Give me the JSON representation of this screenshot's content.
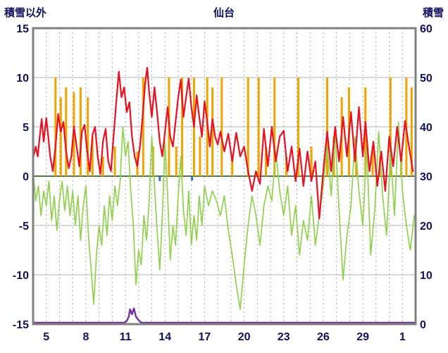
{
  "ui": {
    "left_corner_label": "積雪以外",
    "title": "仙台",
    "right_corner_label": "積雪"
  },
  "chart_data": {
    "type": "line",
    "title": "仙台",
    "left_axis": {
      "label": "積雪以外",
      "min": -15,
      "max": 15,
      "ticks": [
        15,
        10,
        5,
        0,
        -5,
        -10,
        -15
      ]
    },
    "right_axis": {
      "label": "積雪",
      "min": 0,
      "max": 60,
      "ticks": [
        60,
        50,
        40,
        30,
        20,
        10,
        0
      ]
    },
    "x_axis": {
      "min": 4,
      "max": 33,
      "tick_positions": [
        5,
        8,
        11,
        14,
        17,
        20,
        23,
        26,
        29,
        32
      ],
      "tick_labels": [
        "5",
        "8",
        "11",
        "14",
        "17",
        "20",
        "23",
        "26",
        "29",
        "1"
      ]
    },
    "colors": {
      "frame": "#7f7f7f",
      "grid": "#b3b3b3",
      "grid_dash": "#a6a6a6",
      "zero_line": "#4f7a42",
      "text": "#101060",
      "background": "#ffffff"
    },
    "series": [
      {
        "name": "sunshine-bars",
        "type": "bar",
        "axis": "left",
        "color": "#efa400",
        "points": [
          [
            5.7,
            10
          ],
          [
            6.1,
            8
          ],
          [
            6.5,
            9
          ],
          [
            7.1,
            8.5
          ],
          [
            7.6,
            9
          ],
          [
            8.15,
            8
          ],
          [
            8.5,
            4
          ],
          [
            9.3,
            2
          ],
          [
            10.2,
            3
          ],
          [
            11.9,
            2.5
          ],
          [
            12.35,
            10
          ],
          [
            13.1,
            3
          ],
          [
            14.3,
            10
          ],
          [
            14.85,
            3
          ],
          [
            15.3,
            10
          ],
          [
            16.2,
            10
          ],
          [
            16.65,
            4
          ],
          [
            17.2,
            10
          ],
          [
            17.6,
            9
          ],
          [
            18.3,
            10
          ],
          [
            19.1,
            2
          ],
          [
            20.3,
            10
          ],
          [
            21.1,
            10
          ],
          [
            21.65,
            3
          ],
          [
            22.3,
            10
          ],
          [
            23.2,
            2
          ],
          [
            24.1,
            10
          ],
          [
            25.1,
            3
          ],
          [
            26.3,
            10
          ],
          [
            26.8,
            4
          ],
          [
            27.4,
            8
          ],
          [
            27.95,
            9
          ],
          [
            28.5,
            2
          ],
          [
            29.2,
            9
          ],
          [
            29.75,
            3
          ],
          [
            30.3,
            2
          ],
          [
            31.1,
            10
          ],
          [
            31.9,
            2
          ],
          [
            32.3,
            10
          ],
          [
            32.7,
            9
          ]
        ]
      },
      {
        "name": "precip-marks",
        "type": "bar",
        "axis": "left",
        "color": "#2e75b6",
        "points": [
          [
            13.6,
            -0.5
          ],
          [
            16.05,
            -0.45
          ]
        ]
      },
      {
        "name": "green-anomaly-line",
        "type": "line",
        "axis": "left",
        "color": "#92d14f",
        "width": 1.7,
        "points": [
          [
            4.0,
            0.5
          ],
          [
            4.2,
            -2.5
          ],
          [
            4.4,
            -1.0
          ],
          [
            4.6,
            -4.0
          ],
          [
            4.8,
            -1.5
          ],
          [
            5.0,
            -3.0
          ],
          [
            5.2,
            -0.5
          ],
          [
            5.4,
            -4.5
          ],
          [
            5.6,
            -2.0
          ],
          [
            5.8,
            -5.5
          ],
          [
            6.0,
            -2.5
          ],
          [
            6.2,
            -0.5
          ],
          [
            6.4,
            -3.5
          ],
          [
            6.6,
            -1.0
          ],
          [
            6.8,
            -4.0
          ],
          [
            7.0,
            -1.5
          ],
          [
            7.2,
            -5.0
          ],
          [
            7.4,
            -2.0
          ],
          [
            7.6,
            -6.5
          ],
          [
            7.8,
            -3.0
          ],
          [
            8.0,
            -1.0
          ],
          [
            8.2,
            -6.0
          ],
          [
            8.4,
            -9.5
          ],
          [
            8.6,
            -13.0
          ],
          [
            8.8,
            -8.0
          ],
          [
            9.0,
            -5.0
          ],
          [
            9.2,
            -7.0
          ],
          [
            9.4,
            -3.0
          ],
          [
            9.6,
            -6.0
          ],
          [
            9.8,
            -2.0
          ],
          [
            10.0,
            -4.5
          ],
          [
            10.2,
            -1.0
          ],
          [
            10.4,
            -3.0
          ],
          [
            10.6,
            -0.5
          ],
          [
            10.8,
            5.0
          ],
          [
            11.0,
            2.0
          ],
          [
            11.2,
            3.5
          ],
          [
            11.4,
            -1.5
          ],
          [
            11.6,
            -5.0
          ],
          [
            11.8,
            -11.0
          ],
          [
            12.0,
            -7.5
          ],
          [
            12.2,
            -9.0
          ],
          [
            12.4,
            -4.0
          ],
          [
            12.6,
            -6.5
          ],
          [
            12.8,
            -2.5
          ],
          [
            13.0,
            4.0
          ],
          [
            13.2,
            -1.0
          ],
          [
            13.4,
            -5.5
          ],
          [
            13.6,
            -9.5
          ],
          [
            13.8,
            -4.0
          ],
          [
            14.0,
            3.5
          ],
          [
            14.2,
            -2.0
          ],
          [
            14.4,
            -8.5
          ],
          [
            14.6,
            -5.0
          ],
          [
            14.8,
            -7.0
          ],
          [
            15.0,
            -2.0
          ],
          [
            15.2,
            2.0
          ],
          [
            15.4,
            -3.5
          ],
          [
            15.6,
            -6.0
          ],
          [
            15.8,
            -1.5
          ],
          [
            16.0,
            -7.0
          ],
          [
            16.2,
            -4.0
          ],
          [
            16.4,
            -6.5
          ],
          [
            16.6,
            -2.0
          ],
          [
            16.8,
            -5.0
          ],
          [
            17.0,
            -1.0
          ],
          [
            17.3,
            -3.0
          ],
          [
            17.6,
            -1.5
          ],
          [
            17.9,
            -2.5
          ],
          [
            18.2,
            -4.0
          ],
          [
            18.5,
            -2.0
          ],
          [
            18.8,
            -5.5
          ],
          [
            19.1,
            -8.0
          ],
          [
            19.4,
            -11.0
          ],
          [
            19.7,
            -13.5
          ],
          [
            20.0,
            -9.0
          ],
          [
            20.3,
            -5.0
          ],
          [
            20.6,
            -2.0
          ],
          [
            20.9,
            -4.0
          ],
          [
            21.2,
            -7.0
          ],
          [
            21.5,
            -3.0
          ],
          [
            21.8,
            -1.0
          ],
          [
            22.1,
            -2.5
          ],
          [
            22.4,
            2.5
          ],
          [
            22.7,
            -1.5
          ],
          [
            23.0,
            -4.0
          ],
          [
            23.3,
            -1.0
          ],
          [
            23.6,
            -6.0
          ],
          [
            23.9,
            -3.0
          ],
          [
            24.2,
            -8.0
          ],
          [
            24.5,
            -4.5
          ],
          [
            24.8,
            -6.5
          ],
          [
            25.1,
            -2.0
          ],
          [
            25.4,
            -7.0
          ],
          [
            25.7,
            -4.0
          ],
          [
            26.0,
            -1.0
          ],
          [
            26.3,
            3.0
          ],
          [
            26.6,
            -2.0
          ],
          [
            26.9,
            4.5
          ],
          [
            27.2,
            -3.5
          ],
          [
            27.5,
            -10.5
          ],
          [
            27.8,
            -6.0
          ],
          [
            28.1,
            -3.0
          ],
          [
            28.4,
            4.0
          ],
          [
            28.7,
            -1.5
          ],
          [
            29.0,
            -5.0
          ],
          [
            29.3,
            3.0
          ],
          [
            29.6,
            -8.0
          ],
          [
            29.9,
            -3.5
          ],
          [
            30.2,
            4.5
          ],
          [
            30.5,
            -2.0
          ],
          [
            30.8,
            -6.0
          ],
          [
            31.1,
            2.5
          ],
          [
            31.4,
            -4.0
          ],
          [
            31.7,
            5.5
          ],
          [
            32.0,
            -1.5
          ],
          [
            32.3,
            -5.0
          ],
          [
            32.6,
            -7.5
          ],
          [
            32.9,
            -4.0
          ]
        ]
      },
      {
        "name": "temperature-line",
        "type": "line",
        "axis": "left",
        "color": "#e81123",
        "width": 2.2,
        "points": [
          [
            4.0,
            1.8
          ],
          [
            4.2,
            3.0
          ],
          [
            4.35,
            2.0
          ],
          [
            4.5,
            4.0
          ],
          [
            4.65,
            5.8
          ],
          [
            4.8,
            3.5
          ],
          [
            5.0,
            5.9
          ],
          [
            5.15,
            4.0
          ],
          [
            5.3,
            2.0
          ],
          [
            5.5,
            0.5
          ],
          [
            5.7,
            3.0
          ],
          [
            5.9,
            6.3
          ],
          [
            6.1,
            4.5
          ],
          [
            6.3,
            5.5
          ],
          [
            6.5,
            2.5
          ],
          [
            6.7,
            0.8
          ],
          [
            6.9,
            2.0
          ],
          [
            7.1,
            5.0
          ],
          [
            7.3,
            3.0
          ],
          [
            7.5,
            1.0
          ],
          [
            7.7,
            4.5
          ],
          [
            7.9,
            5.2
          ],
          [
            8.1,
            2.5
          ],
          [
            8.3,
            0.5
          ],
          [
            8.5,
            4.2
          ],
          [
            8.7,
            5.0
          ],
          [
            8.9,
            2.0
          ],
          [
            9.1,
            0.2
          ],
          [
            9.3,
            3.5
          ],
          [
            9.5,
            4.8
          ],
          [
            9.7,
            1.5
          ],
          [
            9.9,
            0.5
          ],
          [
            10.1,
            4.0
          ],
          [
            10.3,
            7.5
          ],
          [
            10.5,
            10.6
          ],
          [
            10.7,
            8.0
          ],
          [
            10.9,
            9.0
          ],
          [
            11.1,
            6.5
          ],
          [
            11.3,
            7.5
          ],
          [
            11.5,
            4.0
          ],
          [
            11.7,
            2.0
          ],
          [
            11.9,
            1.0
          ],
          [
            12.1,
            3.0
          ],
          [
            12.3,
            6.0
          ],
          [
            12.5,
            9.5
          ],
          [
            12.65,
            11.0
          ],
          [
            12.8,
            8.5
          ],
          [
            13.0,
            6.0
          ],
          [
            13.2,
            9.0
          ],
          [
            13.4,
            6.5
          ],
          [
            13.6,
            3.5
          ],
          [
            13.8,
            2.0
          ],
          [
            14.0,
            4.5
          ],
          [
            14.2,
            7.0
          ],
          [
            14.4,
            4.0
          ],
          [
            14.6,
            3.0
          ],
          [
            14.8,
            5.5
          ],
          [
            15.0,
            8.0
          ],
          [
            15.2,
            9.8
          ],
          [
            15.4,
            6.0
          ],
          [
            15.6,
            8.0
          ],
          [
            15.8,
            9.9
          ],
          [
            16.0,
            7.0
          ],
          [
            16.2,
            5.0
          ],
          [
            16.4,
            8.2
          ],
          [
            16.6,
            6.0
          ],
          [
            16.8,
            4.0
          ],
          [
            17.0,
            7.6
          ],
          [
            17.2,
            5.5
          ],
          [
            17.4,
            3.0
          ],
          [
            17.6,
            5.8
          ],
          [
            17.8,
            4.0
          ],
          [
            18.0,
            3.2
          ],
          [
            18.2,
            4.5
          ],
          [
            18.5,
            2.5
          ],
          [
            18.8,
            4.3
          ],
          [
            19.1,
            1.5
          ],
          [
            19.4,
            4.4
          ],
          [
            19.7,
            2.0
          ],
          [
            20.0,
            3.0
          ],
          [
            20.3,
            0.5
          ],
          [
            20.6,
            -1.5
          ],
          [
            20.9,
            0.5
          ],
          [
            21.2,
            -0.8
          ],
          [
            21.5,
            4.8
          ],
          [
            21.8,
            1.0
          ],
          [
            22.1,
            5.0
          ],
          [
            22.4,
            1.5
          ],
          [
            22.7,
            4.0
          ],
          [
            23.0,
            4.6
          ],
          [
            23.3,
            0.5
          ],
          [
            23.6,
            3.0
          ],
          [
            23.9,
            -0.5
          ],
          [
            24.2,
            2.8
          ],
          [
            24.5,
            -1.0
          ],
          [
            24.8,
            2.5
          ],
          [
            25.1,
            -0.5
          ],
          [
            25.4,
            1.5
          ],
          [
            25.7,
            -4.3
          ],
          [
            26.0,
            0.5
          ],
          [
            26.3,
            4.5
          ],
          [
            26.6,
            0.5
          ],
          [
            26.9,
            5.0
          ],
          [
            27.2,
            1.5
          ],
          [
            27.5,
            6.0
          ],
          [
            27.8,
            2.0
          ],
          [
            28.1,
            6.5
          ],
          [
            28.4,
            1.5
          ],
          [
            28.7,
            7.0
          ],
          [
            29.0,
            2.0
          ],
          [
            29.2,
            5.5
          ],
          [
            29.5,
            0.5
          ],
          [
            29.8,
            3.5
          ],
          [
            30.1,
            -1.0
          ],
          [
            30.4,
            2.5
          ],
          [
            30.7,
            -1.5
          ],
          [
            31.0,
            4.0
          ],
          [
            31.3,
            1.0
          ],
          [
            31.6,
            5.0
          ],
          [
            31.9,
            1.5
          ],
          [
            32.2,
            5.6
          ],
          [
            32.5,
            3.0
          ],
          [
            32.8,
            0.5
          ]
        ]
      },
      {
        "name": "snow-depth-line",
        "type": "line",
        "axis": "right",
        "color": "#7030a0",
        "width": 2.4,
        "points": [
          [
            4.0,
            0.3
          ],
          [
            10.9,
            0.3
          ],
          [
            11.1,
            0.6
          ],
          [
            11.25,
            1.5
          ],
          [
            11.35,
            3.0
          ],
          [
            11.5,
            2.0
          ],
          [
            11.65,
            3.2
          ],
          [
            11.8,
            1.5
          ],
          [
            12.0,
            0.8
          ],
          [
            12.2,
            0.3
          ],
          [
            33.0,
            0.3
          ]
        ]
      }
    ]
  }
}
